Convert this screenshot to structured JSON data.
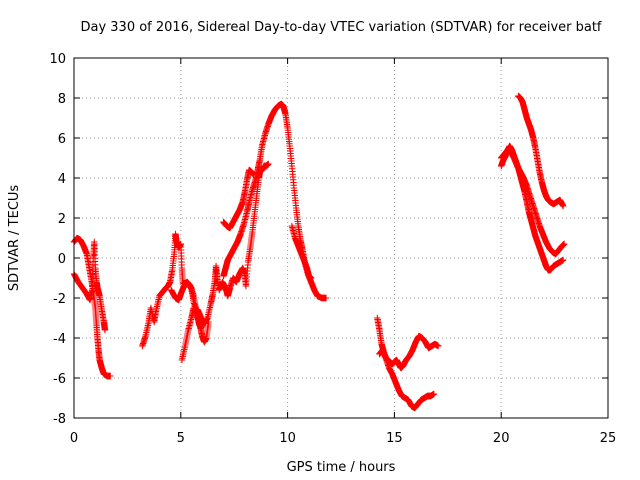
{
  "chart_data": {
    "type": "scatter",
    "title": "Day 330 of 2016, Sidereal Day-to-day VTEC variation (SDTVAR) for receiver batf",
    "xlabel": "GPS time / hours",
    "ylabel": "SDTVAR / TECUs",
    "xlim": [
      0,
      25
    ],
    "ylim": [
      -8,
      10
    ],
    "xticks": [
      "0",
      "5",
      "10",
      "15",
      "20",
      "25"
    ],
    "yticks": [
      "-8",
      "-6",
      "-4",
      "-2",
      "0",
      "2",
      "4",
      "6",
      "8",
      "10"
    ],
    "grid": true,
    "marker": "plus",
    "series_color": "#ff0000",
    "series": [
      {
        "name": "trace-1a",
        "points": [
          [
            0.0,
            0.8
          ],
          [
            0.15,
            1.0
          ],
          [
            0.3,
            0.9
          ],
          [
            0.45,
            0.6
          ],
          [
            0.6,
            0.2
          ],
          [
            0.7,
            -0.4
          ],
          [
            0.8,
            -1.0
          ],
          [
            0.9,
            -1.7
          ],
          [
            1.0,
            -2.5
          ],
          [
            1.05,
            -3.3
          ],
          [
            1.1,
            -4.0
          ],
          [
            1.15,
            -4.6
          ],
          [
            1.2,
            -5.1
          ],
          [
            1.3,
            -5.5
          ],
          [
            1.4,
            -5.8
          ],
          [
            1.55,
            -5.9
          ],
          [
            1.7,
            -5.9
          ]
        ]
      },
      {
        "name": "trace-1b",
        "points": [
          [
            0.0,
            -0.8
          ],
          [
            0.2,
            -1.2
          ],
          [
            0.4,
            -1.5
          ],
          [
            0.6,
            -1.8
          ],
          [
            0.75,
            -2.1
          ],
          [
            0.85,
            -1.6
          ],
          [
            0.9,
            0.0
          ],
          [
            0.95,
            0.8
          ],
          [
            1.0,
            -0.5
          ],
          [
            1.05,
            -1.2
          ],
          [
            1.1,
            -1.5
          ],
          [
            1.2,
            -1.9
          ],
          [
            1.3,
            -2.6
          ],
          [
            1.4,
            -3.2
          ],
          [
            1.45,
            -3.6
          ]
        ]
      },
      {
        "name": "trace-2",
        "points": [
          [
            3.2,
            -4.4
          ],
          [
            3.35,
            -3.9
          ],
          [
            3.5,
            -3.2
          ],
          [
            3.6,
            -2.5
          ],
          [
            3.75,
            -3.2
          ],
          [
            3.85,
            -2.6
          ],
          [
            4.0,
            -1.9
          ],
          [
            4.15,
            -1.7
          ],
          [
            4.3,
            -1.5
          ],
          [
            4.4,
            -1.4
          ],
          [
            4.5,
            -1.2
          ],
          [
            4.6,
            -0.6
          ],
          [
            4.7,
            0.3
          ],
          [
            4.75,
            1.2
          ],
          [
            4.8,
            0.8
          ],
          [
            4.9,
            0.5
          ],
          [
            5.0,
            0.7
          ],
          [
            5.05,
            -0.5
          ],
          [
            5.1,
            -1.3
          ],
          [
            5.3,
            -1.2
          ],
          [
            5.45,
            -1.4
          ],
          [
            5.6,
            -1.9
          ],
          [
            5.75,
            -2.7
          ],
          [
            5.85,
            -3.3
          ],
          [
            5.95,
            -3.5
          ]
        ]
      },
      {
        "name": "trace-3",
        "points": [
          [
            4.55,
            -1.6
          ],
          [
            4.75,
            -2.0
          ],
          [
            4.9,
            -2.1
          ],
          [
            5.0,
            -1.8
          ],
          [
            5.15,
            -1.4
          ],
          [
            5.3,
            -1.3
          ],
          [
            5.5,
            -1.5
          ],
          [
            5.6,
            -2.2
          ],
          [
            5.75,
            -2.8
          ],
          [
            5.9,
            -3.4
          ],
          [
            6.0,
            -3.9
          ],
          [
            6.1,
            -4.2
          ],
          [
            6.2,
            -4.0
          ],
          [
            6.3,
            -3.2
          ]
        ]
      },
      {
        "name": "trace-4",
        "points": [
          [
            5.05,
            -5.1
          ],
          [
            5.2,
            -4.4
          ],
          [
            5.35,
            -3.6
          ],
          [
            5.5,
            -3.0
          ],
          [
            5.6,
            -2.5
          ],
          [
            5.8,
            -2.6
          ],
          [
            5.95,
            -3.0
          ],
          [
            6.1,
            -3.3
          ],
          [
            6.25,
            -3.0
          ],
          [
            6.4,
            -2.3
          ],
          [
            6.5,
            -1.8
          ],
          [
            6.6,
            -1.1
          ],
          [
            6.65,
            -0.4
          ],
          [
            6.7,
            -1.0
          ],
          [
            6.8,
            -1.6
          ],
          [
            6.95,
            -1.2
          ],
          [
            7.1,
            -1.5
          ],
          [
            7.2,
            -1.9
          ],
          [
            7.3,
            -1.5
          ],
          [
            7.45,
            -1.0
          ],
          [
            7.6,
            -1.2
          ],
          [
            7.75,
            -0.8
          ],
          [
            7.9,
            -0.5
          ],
          [
            8.0,
            -0.8
          ],
          [
            8.05,
            -1.4
          ],
          [
            8.15,
            -0.2
          ],
          [
            8.25,
            0.5
          ],
          [
            8.35,
            1.3
          ],
          [
            8.45,
            2.2
          ],
          [
            8.55,
            3.1
          ],
          [
            8.65,
            4.0
          ],
          [
            8.7,
            4.3
          ],
          [
            8.8,
            4.4
          ],
          [
            8.9,
            4.6
          ],
          [
            9.0,
            4.6
          ],
          [
            9.1,
            4.7
          ]
        ]
      },
      {
        "name": "trace-5",
        "points": [
          [
            7.0,
            1.8
          ],
          [
            7.15,
            1.6
          ],
          [
            7.3,
            1.5
          ],
          [
            7.45,
            1.8
          ],
          [
            7.6,
            2.1
          ],
          [
            7.75,
            2.4
          ],
          [
            7.9,
            2.8
          ],
          [
            8.0,
            3.3
          ],
          [
            8.1,
            3.9
          ],
          [
            8.2,
            4.4
          ],
          [
            8.3,
            4.3
          ],
          [
            8.4,
            4.2
          ]
        ]
      },
      {
        "name": "trace-6",
        "points": [
          [
            7.0,
            -0.9
          ],
          [
            7.1,
            -0.5
          ],
          [
            7.2,
            -0.1
          ],
          [
            7.35,
            0.2
          ],
          [
            7.5,
            0.5
          ],
          [
            7.65,
            0.8
          ],
          [
            7.8,
            1.2
          ],
          [
            7.95,
            1.7
          ],
          [
            8.1,
            2.3
          ],
          [
            8.2,
            2.8
          ],
          [
            8.35,
            3.4
          ],
          [
            8.5,
            3.9
          ],
          [
            8.6,
            4.4
          ],
          [
            8.7,
            4.9
          ],
          [
            8.8,
            5.6
          ],
          [
            8.95,
            6.2
          ],
          [
            9.1,
            6.7
          ],
          [
            9.25,
            7.1
          ],
          [
            9.4,
            7.4
          ],
          [
            9.55,
            7.6
          ],
          [
            9.7,
            7.7
          ],
          [
            9.8,
            7.6
          ],
          [
            9.9,
            7.2
          ],
          [
            10.0,
            6.5
          ],
          [
            10.1,
            5.6
          ],
          [
            10.2,
            4.6
          ],
          [
            10.3,
            3.5
          ],
          [
            10.4,
            2.5
          ],
          [
            10.5,
            1.6
          ],
          [
            10.6,
            0.9
          ],
          [
            10.7,
            0.4
          ],
          [
            10.8,
            -0.2
          ],
          [
            10.95,
            -0.8
          ],
          [
            11.1,
            -1.2
          ],
          [
            11.25,
            -1.6
          ],
          [
            11.4,
            -1.9
          ],
          [
            11.6,
            -2.0
          ],
          [
            11.8,
            -2.0
          ]
        ]
      },
      {
        "name": "trace-7",
        "points": [
          [
            10.2,
            1.6
          ],
          [
            10.35,
            1.0
          ],
          [
            10.5,
            0.6
          ],
          [
            10.65,
            0.2
          ],
          [
            10.8,
            -0.2
          ],
          [
            10.9,
            -0.5
          ],
          [
            11.0,
            -0.9
          ],
          [
            11.1,
            -1.0
          ]
        ]
      },
      {
        "name": "trace-8",
        "points": [
          [
            14.2,
            -3.0
          ],
          [
            14.3,
            -3.6
          ],
          [
            14.4,
            -4.3
          ],
          [
            14.5,
            -4.7
          ],
          [
            14.6,
            -5.0
          ],
          [
            14.7,
            -5.1
          ],
          [
            14.8,
            -5.2
          ],
          [
            14.9,
            -5.3
          ],
          [
            15.0,
            -5.2
          ],
          [
            15.1,
            -5.1
          ],
          [
            15.2,
            -5.3
          ],
          [
            15.3,
            -5.5
          ],
          [
            15.4,
            -5.4
          ],
          [
            15.55,
            -5.1
          ],
          [
            15.7,
            -4.9
          ],
          [
            15.85,
            -4.6
          ],
          [
            16.0,
            -4.2
          ],
          [
            16.15,
            -3.9
          ],
          [
            16.3,
            -4.0
          ],
          [
            16.45,
            -4.2
          ],
          [
            16.6,
            -4.5
          ],
          [
            16.75,
            -4.4
          ],
          [
            16.9,
            -4.3
          ],
          [
            17.05,
            -4.4
          ]
        ]
      },
      {
        "name": "trace-9",
        "points": [
          [
            14.3,
            -4.8
          ],
          [
            14.45,
            -4.6
          ],
          [
            14.6,
            -5.0
          ],
          [
            14.75,
            -5.5
          ],
          [
            14.9,
            -5.8
          ],
          [
            15.05,
            -6.2
          ],
          [
            15.2,
            -6.6
          ],
          [
            15.35,
            -6.9
          ],
          [
            15.5,
            -7.0
          ],
          [
            15.65,
            -7.1
          ],
          [
            15.8,
            -7.4
          ],
          [
            15.95,
            -7.5
          ],
          [
            16.1,
            -7.3
          ],
          [
            16.25,
            -7.1
          ],
          [
            16.4,
            -7.0
          ],
          [
            16.55,
            -6.9
          ],
          [
            16.7,
            -6.9
          ],
          [
            16.85,
            -6.8
          ]
        ]
      },
      {
        "name": "trace-10",
        "points": [
          [
            20.0,
            4.6
          ],
          [
            20.1,
            4.9
          ],
          [
            20.2,
            5.1
          ],
          [
            20.3,
            5.4
          ],
          [
            20.4,
            5.6
          ],
          [
            20.5,
            5.4
          ],
          [
            20.6,
            5.1
          ],
          [
            20.7,
            4.8
          ],
          [
            20.8,
            4.5
          ],
          [
            20.9,
            4.1
          ],
          [
            21.0,
            3.7
          ],
          [
            21.1,
            3.3
          ],
          [
            21.2,
            2.8
          ],
          [
            21.3,
            2.3
          ],
          [
            21.4,
            1.9
          ],
          [
            21.5,
            1.5
          ],
          [
            21.6,
            1.1
          ],
          [
            21.7,
            0.8
          ],
          [
            21.8,
            0.5
          ],
          [
            21.9,
            0.2
          ],
          [
            22.0,
            -0.1
          ],
          [
            22.1,
            -0.4
          ],
          [
            22.2,
            -0.6
          ],
          [
            22.3,
            -0.6
          ],
          [
            22.45,
            -0.4
          ],
          [
            22.6,
            -0.3
          ],
          [
            22.75,
            -0.2
          ],
          [
            22.9,
            -0.1
          ]
        ]
      },
      {
        "name": "trace-11",
        "points": [
          [
            20.0,
            5.0
          ],
          [
            20.15,
            5.2
          ],
          [
            20.3,
            5.4
          ],
          [
            20.45,
            5.3
          ],
          [
            20.6,
            5.0
          ],
          [
            20.75,
            4.6
          ],
          [
            20.9,
            4.3
          ],
          [
            21.05,
            4.0
          ],
          [
            21.2,
            3.6
          ],
          [
            21.35,
            3.1
          ],
          [
            21.5,
            2.6
          ],
          [
            21.65,
            2.1
          ],
          [
            21.8,
            1.6
          ],
          [
            21.95,
            1.2
          ],
          [
            22.1,
            0.8
          ],
          [
            22.25,
            0.5
          ],
          [
            22.4,
            0.3
          ],
          [
            22.55,
            0.2
          ],
          [
            22.7,
            0.4
          ],
          [
            22.85,
            0.6
          ],
          [
            22.95,
            0.7
          ]
        ]
      },
      {
        "name": "trace-12",
        "points": [
          [
            20.8,
            8.1
          ],
          [
            20.9,
            8.0
          ],
          [
            21.0,
            7.8
          ],
          [
            21.1,
            7.4
          ],
          [
            21.2,
            7.0
          ],
          [
            21.3,
            6.7
          ],
          [
            21.4,
            6.4
          ],
          [
            21.5,
            6.0
          ],
          [
            21.6,
            5.5
          ],
          [
            21.7,
            4.9
          ],
          [
            21.8,
            4.3
          ],
          [
            21.9,
            3.8
          ],
          [
            22.0,
            3.4
          ],
          [
            22.1,
            3.1
          ],
          [
            22.2,
            2.9
          ],
          [
            22.3,
            2.8
          ],
          [
            22.45,
            2.7
          ],
          [
            22.6,
            2.8
          ],
          [
            22.75,
            2.9
          ],
          [
            22.9,
            2.6
          ]
        ]
      }
    ]
  }
}
